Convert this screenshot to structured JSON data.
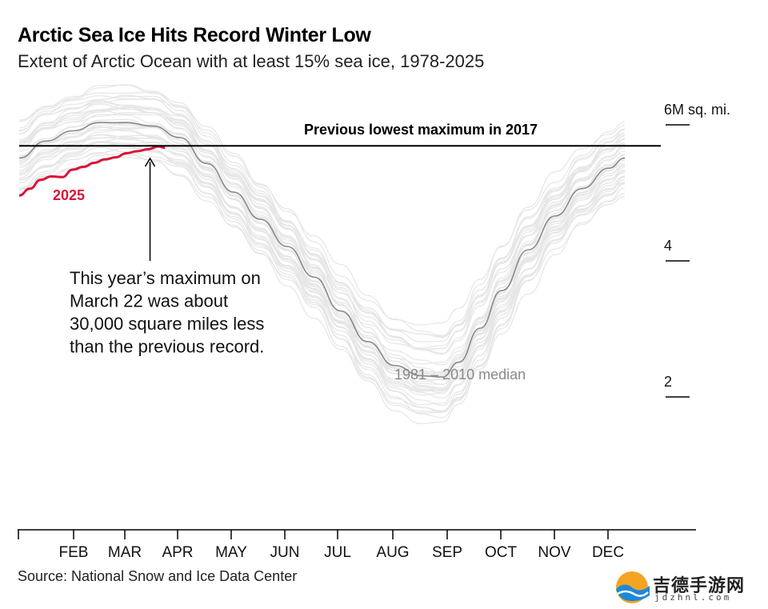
{
  "header": {
    "title": "Arctic Sea Ice Hits Record Winter Low",
    "subtitle": "Extent of Arctic Ocean with at least 15% sea ice, 1978-2025"
  },
  "footer": {
    "source": "Source: National Snow and Ice Data Center"
  },
  "watermark": {
    "text_cn": "吉德手游网",
    "text_en": "jdzhnl.com"
  },
  "chart_data": {
    "type": "line",
    "title": "Arctic Sea Ice Hits Record Winter Low",
    "subtitle": "Extent of Arctic Ocean with at least 15% sea ice, 1978-2025",
    "xlabel": "",
    "ylabel": "6M sq. mi.",
    "xlim": [
      0,
      12
    ],
    "ylim": [
      0,
      6
    ],
    "y_ticks": [
      {
        "value": 6,
        "label": "6M sq. mi."
      },
      {
        "value": 4,
        "label": "4"
      },
      {
        "value": 2,
        "label": "2"
      }
    ],
    "x_ticks": [
      "FEB",
      "MAR",
      "APR",
      "MAY",
      "JUN",
      "JUL",
      "AUG",
      "SEP",
      "OCT",
      "NOV",
      "DEC"
    ],
    "grid": false,
    "series": [
      {
        "name": "1981 – 2010 median",
        "color": "#8a8a8a",
        "points": [
          [
            0,
            5.5
          ],
          [
            0.5,
            5.75
          ],
          [
            1,
            5.9
          ],
          [
            1.5,
            6.02
          ],
          [
            2,
            6.02
          ],
          [
            2.5,
            5.97
          ],
          [
            3,
            5.8
          ],
          [
            3.5,
            5.42
          ],
          [
            4,
            5.0
          ],
          [
            4.5,
            4.6
          ],
          [
            5,
            4.2
          ],
          [
            5.5,
            3.75
          ],
          [
            6,
            3.25
          ],
          [
            6.5,
            2.8
          ],
          [
            7,
            2.45
          ],
          [
            7.5,
            2.3
          ],
          [
            7.9,
            2.28
          ],
          [
            8.2,
            2.5
          ],
          [
            8.6,
            3.0
          ],
          [
            9,
            3.55
          ],
          [
            9.5,
            4.15
          ],
          [
            10,
            4.65
          ],
          [
            10.5,
            5.05
          ],
          [
            11,
            5.35
          ],
          [
            11.3,
            5.5
          ]
        ]
      },
      {
        "name": "2025",
        "color": "#d8153a",
        "points": [
          [
            0,
            4.95
          ],
          [
            0.2,
            5.05
          ],
          [
            0.4,
            5.18
          ],
          [
            0.6,
            5.23
          ],
          [
            0.8,
            5.22
          ],
          [
            1,
            5.33
          ],
          [
            1.2,
            5.37
          ],
          [
            1.4,
            5.43
          ],
          [
            1.6,
            5.48
          ],
          [
            1.8,
            5.51
          ],
          [
            2,
            5.57
          ],
          [
            2.2,
            5.6
          ],
          [
            2.4,
            5.63
          ],
          [
            2.6,
            5.67
          ],
          [
            2.72,
            5.65
          ]
        ]
      }
    ],
    "reference_line": {
      "label": "Previous lowest maximum in 2017",
      "value": 5.68
    },
    "annotations": [
      {
        "text": "2025",
        "color": "#d8153a"
      },
      {
        "text": "1981 – 2010 median",
        "color": "#8a8a8a"
      },
      {
        "text": "This year’s maximum on March 22 was about 30,000 square miles less than the previous record.",
        "x": 2.62,
        "y": 5.65
      }
    ],
    "legend": "none"
  }
}
